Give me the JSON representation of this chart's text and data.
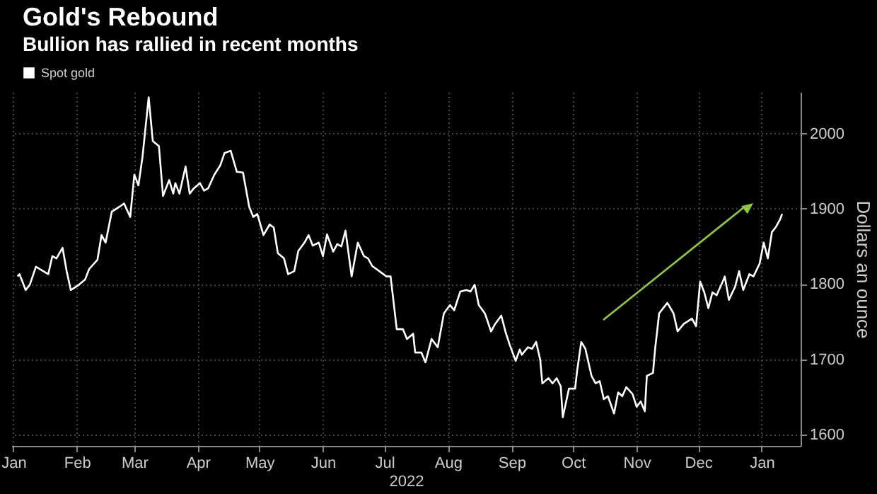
{
  "chart_data": {
    "type": "line",
    "title": "Gold's Rebound",
    "subtitle": "Bullion has rallied in recent months",
    "xlabel": "2022",
    "ylabel": "Dollars an ounce",
    "legend": "top left",
    "grid": true,
    "marker": "none",
    "line_style": "solid",
    "xlim": [
      "2021-12-31",
      "2023-01-20"
    ],
    "ylim": [
      1585,
      2055
    ],
    "xticks": [
      {
        "value": "2022-01-01",
        "label": "Jan"
      },
      {
        "value": "2022-02-01",
        "label": "Feb"
      },
      {
        "value": "2022-03-01",
        "label": "Mar"
      },
      {
        "value": "2022-04-01",
        "label": "Apr"
      },
      {
        "value": "2022-05-01",
        "label": "May"
      },
      {
        "value": "2022-06-01",
        "label": "Jun"
      },
      {
        "value": "2022-07-01",
        "label": "Jul"
      },
      {
        "value": "2022-08-01",
        "label": "Aug"
      },
      {
        "value": "2022-09-01",
        "label": "Sep"
      },
      {
        "value": "2022-10-01",
        "label": "Oct"
      },
      {
        "value": "2022-11-01",
        "label": "Nov"
      },
      {
        "value": "2022-12-01",
        "label": "Dec"
      },
      {
        "value": "2023-01-01",
        "label": "Jan"
      }
    ],
    "yticks": [
      1600,
      1700,
      1800,
      1900,
      2000
    ],
    "x": [
      "2022-01-03",
      "2022-01-04",
      "2022-01-07",
      "2022-01-09",
      "2022-01-12",
      "2022-01-15",
      "2022-01-18",
      "2022-01-20",
      "2022-01-22",
      "2022-01-25",
      "2022-01-27",
      "2022-01-29",
      "2022-02-02",
      "2022-02-05",
      "2022-02-07",
      "2022-02-11",
      "2022-02-13",
      "2022-02-15",
      "2022-02-18",
      "2022-02-22",
      "2022-02-24",
      "2022-02-27",
      "2022-03-01",
      "2022-03-03",
      "2022-03-05",
      "2022-03-08",
      "2022-03-10",
      "2022-03-13",
      "2022-03-15",
      "2022-03-18",
      "2022-03-20",
      "2022-03-21",
      "2022-03-23",
      "2022-03-26",
      "2022-03-28",
      "2022-03-30",
      "2022-04-02",
      "2022-04-04",
      "2022-04-06",
      "2022-04-09",
      "2022-04-12",
      "2022-04-14",
      "2022-04-17",
      "2022-04-20",
      "2022-04-23",
      "2022-04-26",
      "2022-04-28",
      "2022-04-30",
      "2022-05-03",
      "2022-05-06",
      "2022-05-08",
      "2022-05-10",
      "2022-05-13",
      "2022-05-15",
      "2022-05-18",
      "2022-05-20",
      "2022-05-23",
      "2022-05-25",
      "2022-05-27",
      "2022-05-30",
      "2022-06-01",
      "2022-06-03",
      "2022-06-06",
      "2022-06-08",
      "2022-06-10",
      "2022-06-12",
      "2022-06-15",
      "2022-06-18",
      "2022-06-21",
      "2022-06-23",
      "2022-06-25",
      "2022-06-28",
      "2022-07-02",
      "2022-07-04",
      "2022-07-07",
      "2022-07-10",
      "2022-07-12",
      "2022-07-15",
      "2022-07-16",
      "2022-07-19",
      "2022-07-21",
      "2022-07-24",
      "2022-07-27",
      "2022-07-30",
      "2022-08-02",
      "2022-08-04",
      "2022-08-07",
      "2022-08-10",
      "2022-08-12",
      "2022-08-14",
      "2022-08-16",
      "2022-08-19",
      "2022-08-22",
      "2022-08-24",
      "2022-08-27",
      "2022-08-29",
      "2022-08-31",
      "2022-09-03",
      "2022-09-05",
      "2022-09-06",
      "2022-09-09",
      "2022-09-11",
      "2022-09-13",
      "2022-09-15",
      "2022-09-16",
      "2022-09-19",
      "2022-09-21",
      "2022-09-23",
      "2022-09-25",
      "2022-09-26",
      "2022-09-29",
      "2022-10-02",
      "2022-10-03",
      "2022-10-05",
      "2022-10-07",
      "2022-10-10",
      "2022-10-12",
      "2022-10-14",
      "2022-10-16",
      "2022-10-18",
      "2022-10-21",
      "2022-10-23",
      "2022-10-25",
      "2022-10-27",
      "2022-10-30",
      "2022-11-01",
      "2022-11-03",
      "2022-11-05",
      "2022-11-06",
      "2022-11-09",
      "2022-11-10",
      "2022-11-12",
      "2022-11-16",
      "2022-11-19",
      "2022-11-21",
      "2022-11-24",
      "2022-11-28",
      "2022-11-30",
      "2022-12-02",
      "2022-12-04",
      "2022-12-06",
      "2022-12-08",
      "2022-12-10",
      "2022-12-13",
      "2022-12-14",
      "2022-12-16",
      "2022-12-19",
      "2022-12-21",
      "2022-12-23",
      "2022-12-26",
      "2022-12-28",
      "2022-12-31",
      "2023-01-02",
      "2023-01-04",
      "2023-01-06",
      "2023-01-08",
      "2023-01-10",
      "2023-01-11"
    ],
    "series": [
      {
        "name": "Spot gold",
        "color": "#ffffff",
        "values": [
          1810,
          1813,
          1792,
          1799,
          1823,
          1818,
          1813,
          1837,
          1834,
          1848,
          1817,
          1792,
          1799,
          1806,
          1820,
          1832,
          1865,
          1855,
          1896,
          1903,
          1907,
          1889,
          1945,
          1931,
          1969,
          2048,
          1990,
          1983,
          1917,
          1938,
          1920,
          1934,
          1920,
          1956,
          1920,
          1927,
          1934,
          1924,
          1927,
          1945,
          1958,
          1974,
          1977,
          1949,
          1948,
          1903,
          1889,
          1893,
          1865,
          1879,
          1875,
          1841,
          1834,
          1813,
          1817,
          1844,
          1855,
          1865,
          1851,
          1855,
          1837,
          1866,
          1843,
          1853,
          1850,
          1871,
          1810,
          1855,
          1837,
          1834,
          1824,
          1818,
          1810,
          1810,
          1740,
          1740,
          1727,
          1734,
          1709,
          1709,
          1696,
          1727,
          1716,
          1761,
          1772,
          1765,
          1790,
          1792,
          1790,
          1799,
          1772,
          1761,
          1737,
          1747,
          1758,
          1737,
          1720,
          1698,
          1713,
          1706,
          1716,
          1714,
          1723,
          1699,
          1668,
          1675,
          1668,
          1675,
          1664,
          1623,
          1661,
          1661,
          1685,
          1723,
          1714,
          1678,
          1668,
          1671,
          1647,
          1651,
          1628,
          1656,
          1651,
          1663,
          1654,
          1637,
          1644,
          1631,
          1678,
          1682,
          1713,
          1761,
          1775,
          1761,
          1737,
          1747,
          1754,
          1744,
          1803,
          1789,
          1768,
          1789,
          1785,
          1803,
          1810,
          1779,
          1796,
          1817,
          1792,
          1813,
          1810,
          1827,
          1855,
          1834,
          1869,
          1876,
          1886,
          1893
        ]
      }
    ]
  }
}
